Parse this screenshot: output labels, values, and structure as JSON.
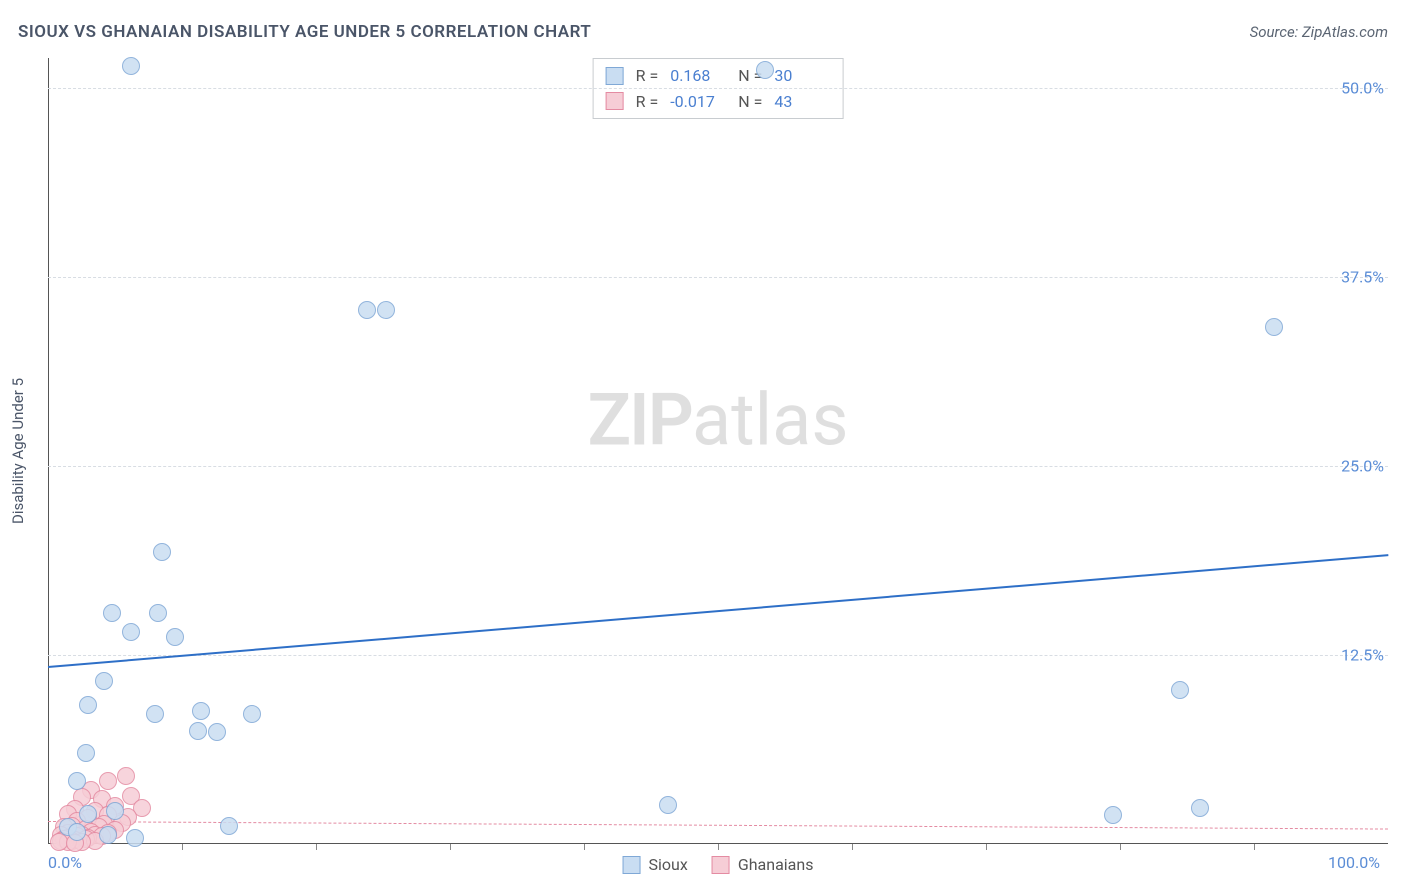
{
  "title": "SIOUX VS GHANAIAN DISABILITY AGE UNDER 5 CORRELATION CHART",
  "source": "Source: ZipAtlas.com",
  "y_axis_label": "Disability Age Under 5",
  "watermark_bold": "ZIP",
  "watermark_light": "atlas",
  "chart": {
    "type": "scatter",
    "xlim": [
      0,
      100
    ],
    "ylim": [
      0,
      52
    ],
    "y_ticks": [
      {
        "v": 12.5,
        "label": "12.5%"
      },
      {
        "v": 25.0,
        "label": "25.0%"
      },
      {
        "v": 37.5,
        "label": "37.5%"
      },
      {
        "v": 50.0,
        "label": "50.0%"
      }
    ],
    "x_ticks_minor": [
      10,
      20,
      30,
      40,
      50,
      60,
      70,
      80,
      90
    ],
    "x_labels": [
      {
        "v": 0,
        "label": "0.0%"
      },
      {
        "v": 100,
        "label": "100.0%"
      }
    ],
    "background_color": "#ffffff",
    "grid_color": "#d8dde3",
    "series": [
      {
        "name": "Sioux",
        "marker_fill": "#c9ddf2",
        "marker_stroke": "#7fa8d6",
        "marker_radius": 9,
        "trend_color": "#2e6fc7",
        "trend_width": 2.5,
        "trend_dash": "solid",
        "trend_y_at_x0": 11.8,
        "trend_y_at_x100": 19.2,
        "R": "0.168",
        "N": "30",
        "points": [
          [
            6.2,
            51.5
          ],
          [
            53.5,
            51.2
          ],
          [
            23.8,
            35.3
          ],
          [
            25.2,
            35.3
          ],
          [
            91.5,
            34.2
          ],
          [
            8.5,
            19.3
          ],
          [
            4.8,
            15.3
          ],
          [
            8.2,
            15.3
          ],
          [
            6.2,
            14.0
          ],
          [
            9.5,
            13.7
          ],
          [
            4.2,
            10.8
          ],
          [
            3.0,
            9.2
          ],
          [
            84.5,
            10.2
          ],
          [
            8.0,
            8.6
          ],
          [
            11.4,
            8.8
          ],
          [
            15.2,
            8.6
          ],
          [
            11.2,
            7.5
          ],
          [
            12.6,
            7.4
          ],
          [
            2.8,
            6.0
          ],
          [
            2.2,
            4.2
          ],
          [
            46.3,
            2.6
          ],
          [
            79.5,
            1.9
          ],
          [
            86.0,
            2.4
          ],
          [
            3.0,
            2.0
          ],
          [
            5.0,
            2.2
          ],
          [
            13.5,
            1.2
          ],
          [
            1.5,
            1.1
          ],
          [
            2.2,
            0.8
          ],
          [
            4.5,
            0.6
          ],
          [
            6.5,
            0.4
          ]
        ]
      },
      {
        "name": "Ghanaians",
        "marker_fill": "#f6cdd6",
        "marker_stroke": "#e48ba2",
        "marker_radius": 9,
        "trend_color": "#e48ba2",
        "trend_width": 1.5,
        "trend_dash": "dashed",
        "trend_y_at_x0": 1.5,
        "trend_y_at_x100": 1.0,
        "R": "-0.017",
        "N": "43",
        "points": [
          [
            4.5,
            4.2
          ],
          [
            5.8,
            4.5
          ],
          [
            3.2,
            3.6
          ],
          [
            6.2,
            3.2
          ],
          [
            4.0,
            3.0
          ],
          [
            2.5,
            3.1
          ],
          [
            7.0,
            2.4
          ],
          [
            5.0,
            2.5
          ],
          [
            3.5,
            2.2
          ],
          [
            2.0,
            2.3
          ],
          [
            1.5,
            2.0
          ],
          [
            4.5,
            1.9
          ],
          [
            6.0,
            1.8
          ],
          [
            3.0,
            1.7
          ],
          [
            2.2,
            1.5
          ],
          [
            5.5,
            1.4
          ],
          [
            4.2,
            1.3
          ],
          [
            1.8,
            1.2
          ],
          [
            3.8,
            1.1
          ],
          [
            2.8,
            1.0
          ],
          [
            1.2,
            1.1
          ],
          [
            5.0,
            0.9
          ],
          [
            3.2,
            0.8
          ],
          [
            2.0,
            0.8
          ],
          [
            4.5,
            0.7
          ],
          [
            1.5,
            0.7
          ],
          [
            3.5,
            0.6
          ],
          [
            2.5,
            0.6
          ],
          [
            1.0,
            0.6
          ],
          [
            4.0,
            0.5
          ],
          [
            2.2,
            0.5
          ],
          [
            3.0,
            0.4
          ],
          [
            1.5,
            0.4
          ],
          [
            2.8,
            0.3
          ],
          [
            1.2,
            0.3
          ],
          [
            2.0,
            0.25
          ],
          [
            3.5,
            0.2
          ],
          [
            1.8,
            0.2
          ],
          [
            1.0,
            0.2
          ],
          [
            2.5,
            0.15
          ],
          [
            1.5,
            0.1
          ],
          [
            0.8,
            0.1
          ],
          [
            2.0,
            0.05
          ]
        ]
      }
    ]
  },
  "legend_top_labels": {
    "R": "R =",
    "N": "N ="
  },
  "legend_bottom": [
    "Sioux",
    "Ghanaians"
  ]
}
